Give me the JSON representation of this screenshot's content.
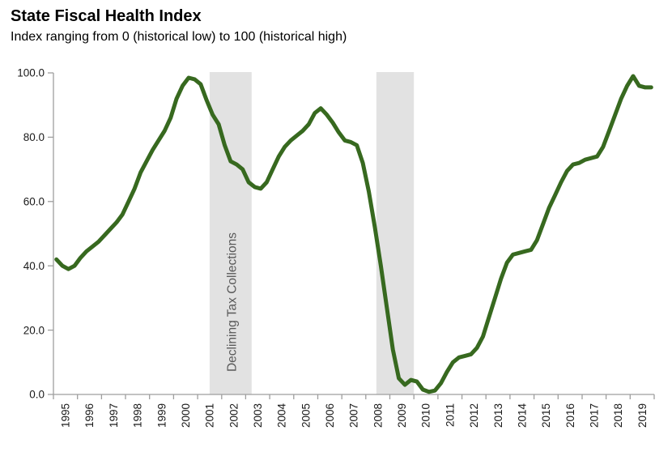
{
  "header": {
    "title": "State Fiscal Health Index",
    "subtitle": "Index ranging from 0 (historical low) to 100 (historical high)"
  },
  "chart_data": {
    "type": "line",
    "title": "State Fiscal Health Index",
    "subtitle": "Index ranging from 0 (historical low) to 100 (historical high)",
    "grid": false,
    "legend": "none",
    "x_range": [
      1995,
      2020
    ],
    "x_labels": [
      "1995",
      "1996",
      "1997",
      "1998",
      "1999",
      "2000",
      "2001",
      "2002",
      "2003",
      "2004",
      "2005",
      "2006",
      "2007",
      "2008",
      "2009",
      "2010",
      "2011",
      "2012",
      "2013",
      "2014",
      "2015",
      "2016",
      "2017",
      "2018",
      "2019"
    ],
    "ylim": [
      0,
      100
    ],
    "y_ticks": {
      "values": [
        0,
        20,
        40,
        60,
        80,
        100
      ],
      "labels": [
        "0.0",
        "20.0",
        "40.0",
        "60.0",
        "80.0",
        "100.0"
      ]
    },
    "colors": {
      "line": "#37691f",
      "axis": "#9e9e9e",
      "tick_label": "#1a1a1a",
      "band": "#e2e2e2",
      "band_label": "#595959"
    },
    "line_width": 5,
    "shaded_regions": [
      {
        "label": "Declining Tax Collections",
        "from": 2001.5,
        "to": 2003.25
      },
      {
        "label": "",
        "from": 2008.44,
        "to": 2010.0
      }
    ],
    "series": [
      {
        "name": "State Fiscal Health Index",
        "frequency": "quarterly",
        "start": "1995Q1",
        "end": "2019Q4",
        "values": [
          42.0,
          40.0,
          39.0,
          40.0,
          42.5,
          44.5,
          46.0,
          47.5,
          49.5,
          51.5,
          53.5,
          56.0,
          60.0,
          64.0,
          69.0,
          72.5,
          76.0,
          79.0,
          82.0,
          86.0,
          92.0,
          96.0,
          98.5,
          98.0,
          96.5,
          91.5,
          87.0,
          84.0,
          77.5,
          72.5,
          71.5,
          70.0,
          66.0,
          64.5,
          64.0,
          66.0,
          70.0,
          74.0,
          77.0,
          79.0,
          80.5,
          82.0,
          84.0,
          87.5,
          89.0,
          87.0,
          84.5,
          81.5,
          79.0,
          78.5,
          77.5,
          72.0,
          63.0,
          52.0,
          40.0,
          27.0,
          14.0,
          5.0,
          3.0,
          4.5,
          4.0,
          1.5,
          0.8,
          1.2,
          3.5,
          7.0,
          10.0,
          11.5,
          12.0,
          12.5,
          14.5,
          18.0,
          24.0,
          30.0,
          36.0,
          41.0,
          43.5,
          44.0,
          44.5,
          45.0,
          48.0,
          53.0,
          58.0,
          62.0,
          66.0,
          69.5,
          71.5,
          72.0,
          73.0,
          73.5,
          74.0,
          77.0,
          82.0,
          87.0,
          92.0,
          96.0,
          99.0,
          96.0,
          95.5,
          95.5
        ]
      }
    ]
  }
}
